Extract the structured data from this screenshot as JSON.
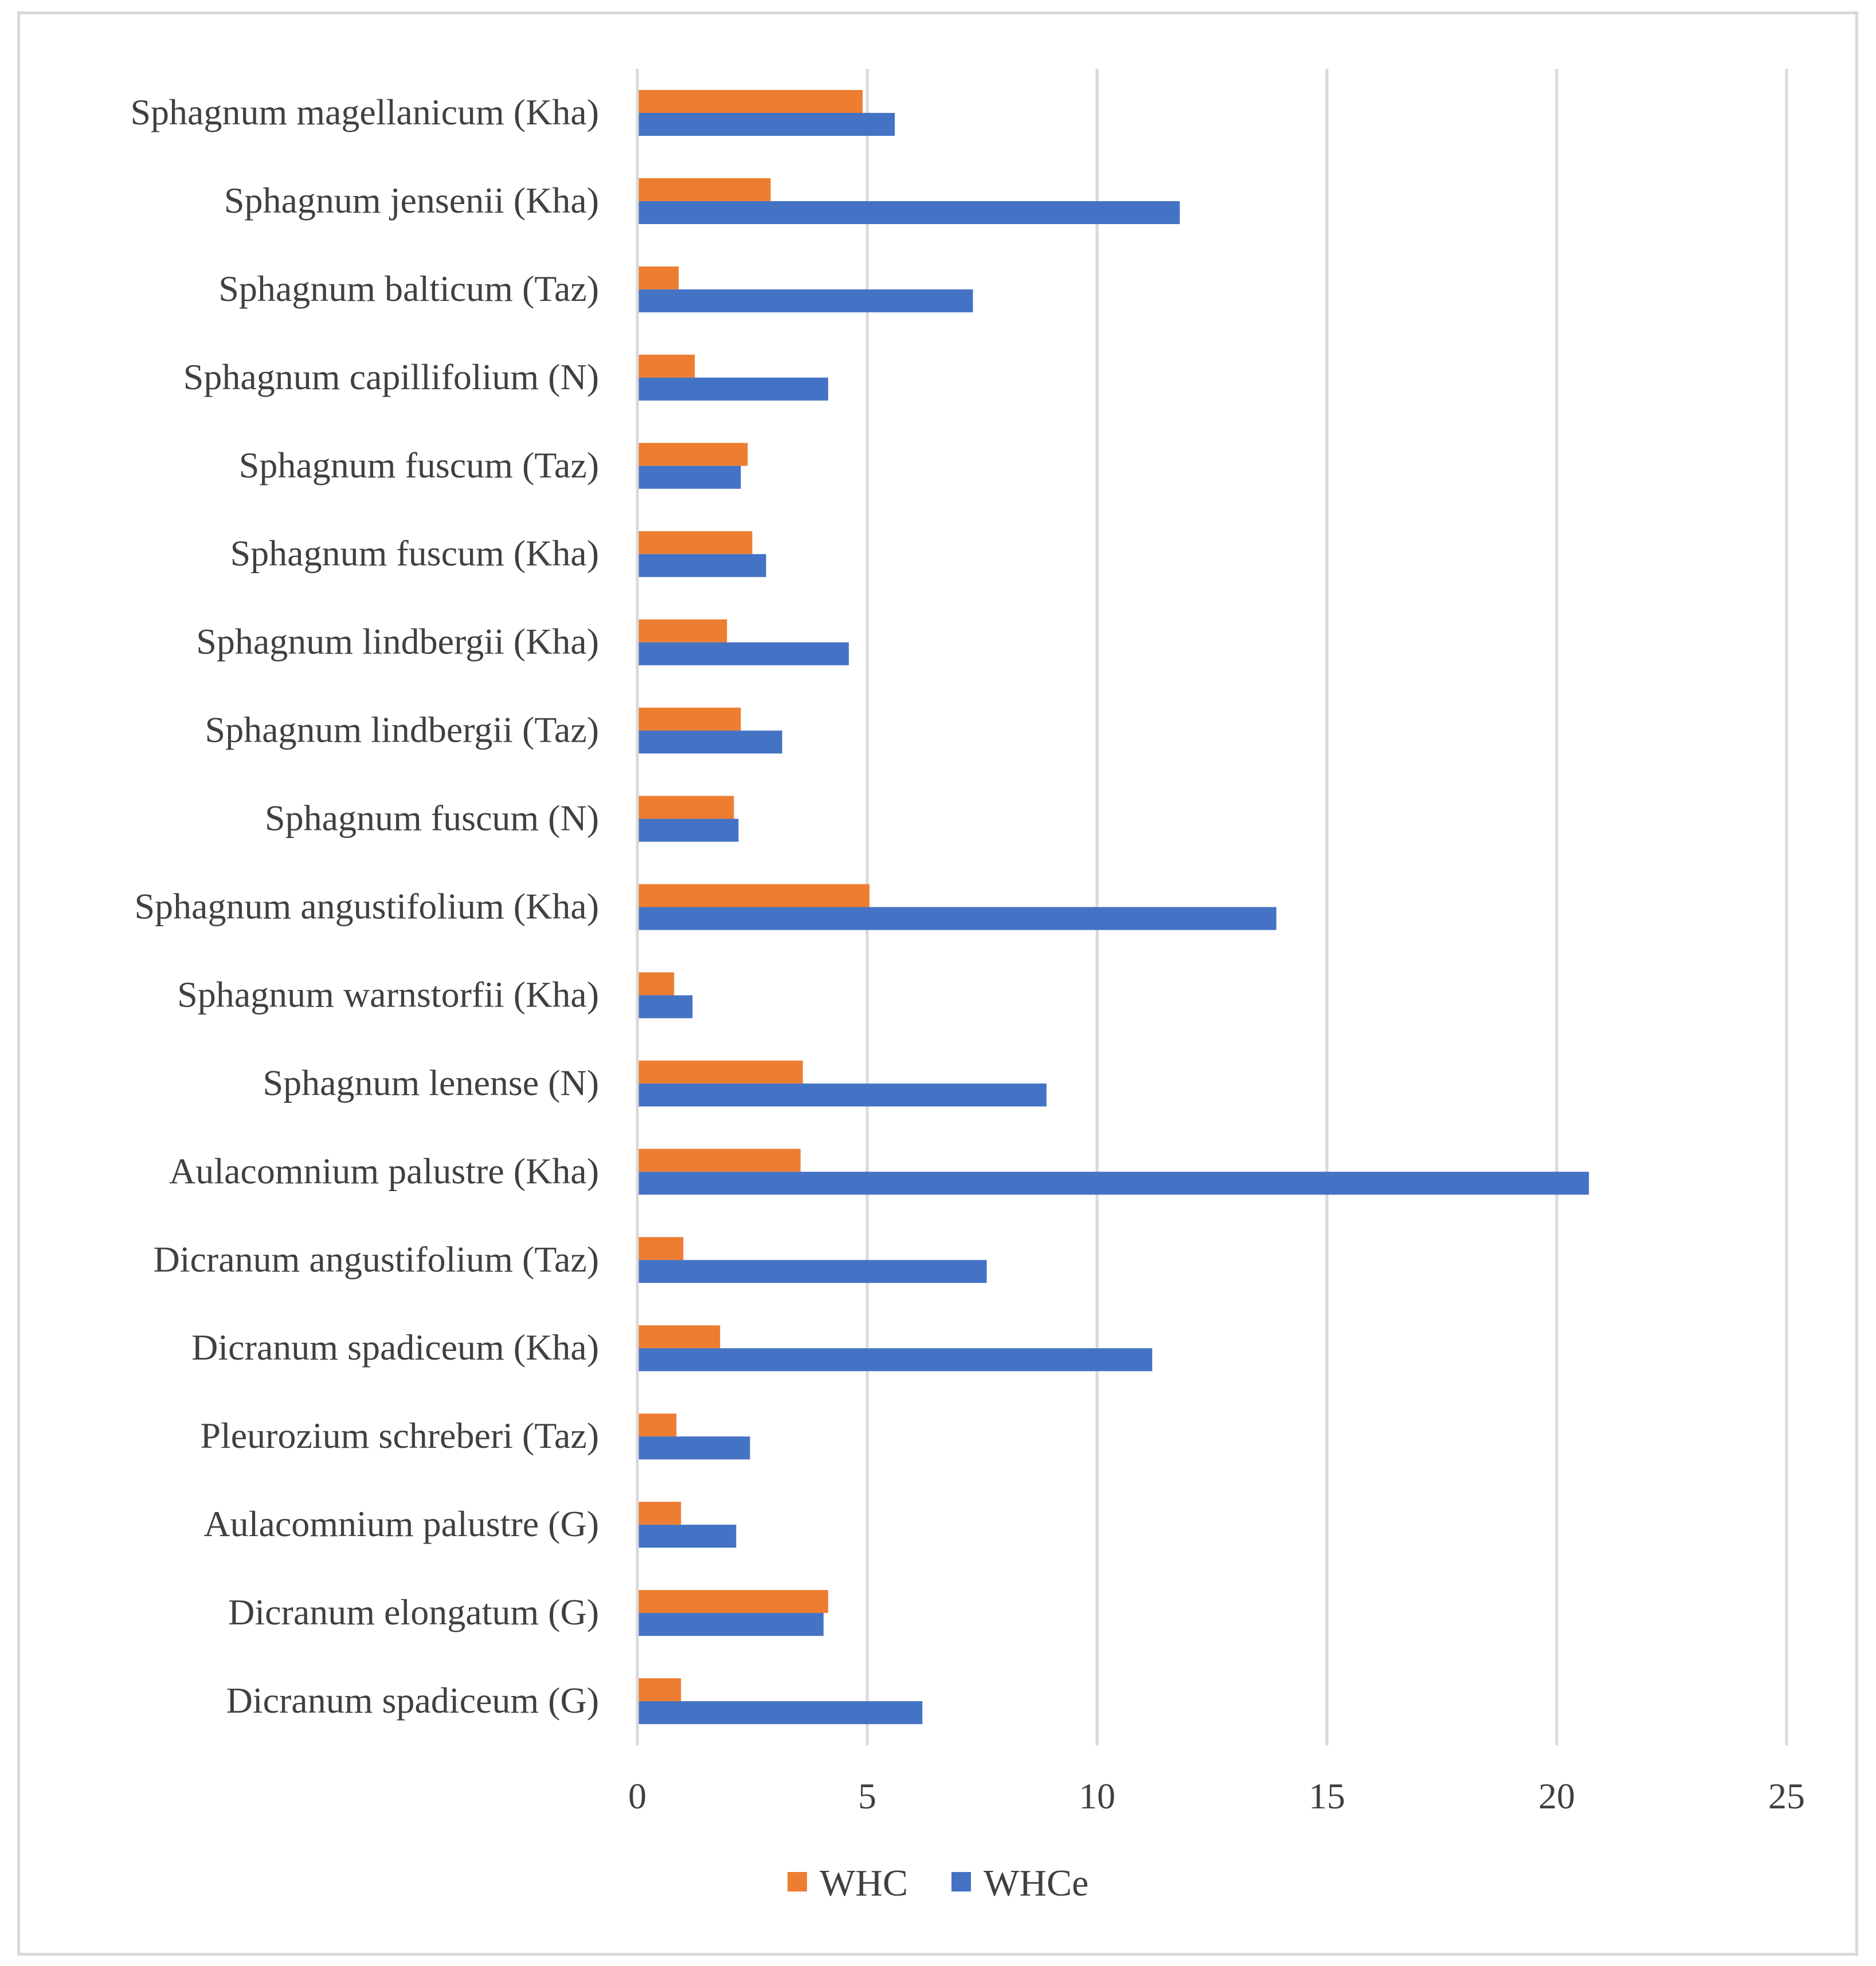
{
  "chart_data": {
    "type": "bar",
    "orientation": "horizontal",
    "title": "",
    "xlabel": "",
    "ylabel": "",
    "xlim": [
      0,
      25
    ],
    "ticks": [
      "0",
      "5",
      "10",
      "15",
      "20",
      "25"
    ],
    "tick_values": [
      0,
      5,
      10,
      15,
      20,
      25
    ],
    "grid": true,
    "legend_position": "bottom",
    "categories": [
      "Sphagnum magellanicum (Kha)",
      "Sphagnum jensenii (Kha)",
      "Sphagnum balticum (Taz)",
      "Sphagnum capillifolium (N)",
      "Sphagnum fuscum (Taz)",
      "Sphagnum fuscum (Kha)",
      "Sphagnum lindbergii (Kha)",
      "Sphagnum lindbergii (Taz)",
      "Sphagnum fuscum (N)",
      "Sphagnum angustifolium (Kha)",
      "Sphagnum warnstorfii (Kha)",
      "Sphagnum lenense (N)",
      "Aulacomnium palustre (Kha)",
      "Dicranum angustifolium (Taz)",
      "Dicranum spadiceum (Kha)",
      "Pleurozium schreberi (Taz)",
      "Aulacomnium palustre (G)",
      "Dicranum elongatum (G)",
      "Dicranum spadiceum (G)"
    ],
    "series": [
      {
        "name": "WHC",
        "color": "#ed7d31",
        "values": [
          4.9,
          2.9,
          0.9,
          1.25,
          2.4,
          2.5,
          1.95,
          2.25,
          2.1,
          5.05,
          0.8,
          3.6,
          3.55,
          1.0,
          1.8,
          0.85,
          0.95,
          4.15,
          0.95
        ]
      },
      {
        "name": "WHCe",
        "color": "#4472c4",
        "values": [
          5.6,
          11.8,
          7.3,
          4.15,
          2.25,
          2.8,
          4.6,
          3.15,
          2.2,
          13.9,
          1.2,
          8.9,
          20.7,
          7.6,
          11.2,
          2.45,
          2.15,
          4.05,
          6.2
        ]
      }
    ]
  }
}
